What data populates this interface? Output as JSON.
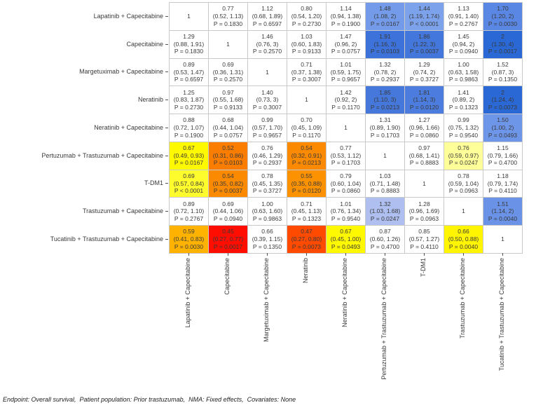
{
  "chart_data": {
    "type": "heatmap",
    "title": "",
    "description": "Network meta-analysis league table of hazard ratios: value, 95% CI, P-value per cell; diagonal = 1",
    "row_labels": [
      "Lapatinib + Capecitabine",
      "Capecitabine",
      "Margetuximab + Capecitabine",
      "Neratinib",
      "Neratinib + Capecitabine",
      "Pertuzumab + Trastuzumab + Capecitabine",
      "T-DM1",
      "Trastuzumab + Capecitabine",
      "Tucatinib + Trastuzumab + Capecitabine"
    ],
    "col_labels": [
      "Lapatinib + Capecitabine",
      "Capecitabine",
      "Margetuximab + Capecitabine",
      "Neratinib",
      "Neratinib + Capecitabine",
      "Pertuzumab + Trastuzumab + Capecitabine",
      "T-DM1",
      "Trastuzumab + Capecitabine",
      "Tucatinib + Trastuzumab + Capecitabine"
    ],
    "cells": [
      [
        {
          "v": "1",
          "bg": "#FFFFFF"
        },
        {
          "v": "0.77",
          "ci": "(0.52, 1.13)",
          "p": "P = 0.1830",
          "bg": "#FFFFFF"
        },
        {
          "v": "1.12",
          "ci": "(0.68, 1.89)",
          "p": "P = 0.6597",
          "bg": "#FFFFFF"
        },
        {
          "v": "0.80",
          "ci": "(0.54, 1.20)",
          "p": "P = 0.2730",
          "bg": "#FFFFFF"
        },
        {
          "v": "1.14",
          "ci": "(0.94, 1.38)",
          "p": "P = 0.1900",
          "bg": "#FFFFFF"
        },
        {
          "v": "1.48",
          "ci": "(1.08, 2)",
          "p": "P = 0.0167",
          "bg": "#739BE9"
        },
        {
          "v": "1.44",
          "ci": "(1.19, 1.74)",
          "p": "P < 0.0001",
          "bg": "#7CA2EC"
        },
        {
          "v": "1.13",
          "ci": "(0.91, 1.40)",
          "p": "P = 0.2767",
          "bg": "#FFFFFF"
        },
        {
          "v": "1.70",
          "ci": "(1.20, 2)",
          "p": "P = 0.0030",
          "bg": "#5987E3"
        }
      ],
      [
        {
          "v": "1.29",
          "ci": "(0.88, 1.91)",
          "p": "P = 0.1830",
          "bg": "#FFFFFF"
        },
        {
          "v": "1",
          "bg": "#FFFFFF"
        },
        {
          "v": "1.46",
          "ci": "(0.76, 3)",
          "p": "P = 0.2570",
          "bg": "#FFFFFF"
        },
        {
          "v": "1.03",
          "ci": "(0.60, 1.83)",
          "p": "P = 0.9133",
          "bg": "#FFFFFF"
        },
        {
          "v": "1.47",
          "ci": "(0.96, 2)",
          "p": "P = 0.0757",
          "bg": "#FFFFFF"
        },
        {
          "v": "1.91",
          "ci": "(1.16, 3)",
          "p": "P = 0.0103",
          "bg": "#3C72D9"
        },
        {
          "v": "1.86",
          "ci": "(1.22, 3)",
          "p": "P = 0.0037",
          "bg": "#4477DB"
        },
        {
          "v": "1.45",
          "ci": "(0.94, 2)",
          "p": "P = 0.0940",
          "bg": "#FFFFFF"
        },
        {
          "v": "2",
          "ci": "(1.30, 4)",
          "p": "P = 0.0017",
          "bg": "#2A68D5"
        }
      ],
      [
        {
          "v": "0.89",
          "ci": "(0.53, 1.47)",
          "p": "P = 0.6597",
          "bg": "#FFFFFF"
        },
        {
          "v": "0.69",
          "ci": "(0.36, 1.31)",
          "p": "P = 0.2570",
          "bg": "#FFFFFF"
        },
        {
          "v": "1",
          "bg": "#FFFFFF"
        },
        {
          "v": "0.71",
          "ci": "(0.37, 1.38)",
          "p": "P = 0.3007",
          "bg": "#FFFFFF"
        },
        {
          "v": "1.01",
          "ci": "(0.59, 1.75)",
          "p": "P = 0.9657",
          "bg": "#FFFFFF"
        },
        {
          "v": "1.32",
          "ci": "(0.78, 2)",
          "p": "P = 0.2937",
          "bg": "#FFFFFF"
        },
        {
          "v": "1.29",
          "ci": "(0.74, 2)",
          "p": "P = 0.3727",
          "bg": "#FFFFFF"
        },
        {
          "v": "1.00",
          "ci": "(0.63, 1.58)",
          "p": "P = 0.9863",
          "bg": "#FFFFFF"
        },
        {
          "v": "1.52",
          "ci": "(0.87, 3)",
          "p": "P = 0.1350",
          "bg": "#FFFFFF"
        }
      ],
      [
        {
          "v": "1.25",
          "ci": "(0.83, 1.87)",
          "p": "P = 0.2730",
          "bg": "#FFFFFF"
        },
        {
          "v": "0.97",
          "ci": "(0.55, 1.68)",
          "p": "P = 0.9133",
          "bg": "#FFFFFF"
        },
        {
          "v": "1.40",
          "ci": "(0.73, 3)",
          "p": "P = 0.3007",
          "bg": "#FFFFFF"
        },
        {
          "v": "1",
          "bg": "#FFFFFF"
        },
        {
          "v": "1.42",
          "ci": "(0.92, 2)",
          "p": "P = 0.1170",
          "bg": "#FFFFFF"
        },
        {
          "v": "1.85",
          "ci": "(1.10, 3)",
          "p": "P = 0.0213",
          "bg": "#4678DC"
        },
        {
          "v": "1.81",
          "ci": "(1.14, 3)",
          "p": "P = 0.0120",
          "bg": "#4B7CDE"
        },
        {
          "v": "1.41",
          "ci": "(0.89, 2)",
          "p": "P = 0.1323",
          "bg": "#FFFFFF"
        },
        {
          "v": "2",
          "ci": "(1.24, 4)",
          "p": "P = 0.0073",
          "bg": "#2A68D5"
        }
      ],
      [
        {
          "v": "0.88",
          "ci": "(0.72, 1.07)",
          "p": "P = 0.1900",
          "bg": "#FFFFFF"
        },
        {
          "v": "0.68",
          "ci": "(0.44, 1.04)",
          "p": "P = 0.0757",
          "bg": "#FFFFFF"
        },
        {
          "v": "0.99",
          "ci": "(0.57, 1.70)",
          "p": "P = 0.9657",
          "bg": "#FFFFFF"
        },
        {
          "v": "0.70",
          "ci": "(0.45, 1.09)",
          "p": "P = 0.1170",
          "bg": "#FFFFFF"
        },
        {
          "v": "1",
          "bg": "#FFFFFF"
        },
        {
          "v": "1.31",
          "ci": "(0.89, 1.90)",
          "p": "P = 0.1703",
          "bg": "#FFFFFF"
        },
        {
          "v": "1.27",
          "ci": "(0.96, 1.66)",
          "p": "P = 0.0860",
          "bg": "#FFFFFF"
        },
        {
          "v": "0.99",
          "ci": "(0.75, 1.32)",
          "p": "P = 0.9540",
          "bg": "#FFFFFF"
        },
        {
          "v": "1.50",
          "ci": "(1.00, 2)",
          "p": "P = 0.0493",
          "bg": "#6E96E8"
        }
      ],
      [
        {
          "v": "0.67",
          "ci": "(0.49, 0.93)",
          "p": "P = 0.0167",
          "bg": "#FFF900"
        },
        {
          "v": "0.52",
          "ci": "(0.31, 0.86)",
          "p": "P = 0.0103",
          "bg": "#FA7D00"
        },
        {
          "v": "0.76",
          "ci": "(0.46, 1.29)",
          "p": "P = 0.2937",
          "bg": "#FFFFFF"
        },
        {
          "v": "0.54",
          "ci": "(0.32, 0.91)",
          "p": "P = 0.0213",
          "bg": "#FB8A00"
        },
        {
          "v": "0.77",
          "ci": "(0.53, 1.12)",
          "p": "P = 0.1703",
          "bg": "#FFFFFF"
        },
        {
          "v": "1",
          "bg": "#FFFFFF"
        },
        {
          "v": "0.97",
          "ci": "(0.68, 1.41)",
          "p": "P = 0.8883",
          "bg": "#FFFFFF"
        },
        {
          "v": "0.76",
          "ci": "(0.59, 0.97)",
          "p": "P = 0.0247",
          "bg": "#FFFF99"
        },
        {
          "v": "1.15",
          "ci": "(0.79, 1.66)",
          "p": "P = 0.4700",
          "bg": "#FFFFFF"
        }
      ],
      [
        {
          "v": "0.69",
          "ci": "(0.57, 0.84)",
          "p": "P < 0.0001",
          "bg": "#FFFC2E"
        },
        {
          "v": "0.54",
          "ci": "(0.35, 0.82)",
          "p": "P = 0.0037",
          "bg": "#FB8A00"
        },
        {
          "v": "0.78",
          "ci": "(0.45, 1.35)",
          "p": "P = 0.3727",
          "bg": "#FFFFFF"
        },
        {
          "v": "0.55",
          "ci": "(0.35, 0.88)",
          "p": "P = 0.0120",
          "bg": "#FC9200"
        },
        {
          "v": "0.79",
          "ci": "(0.60, 1.04)",
          "p": "P = 0.0860",
          "bg": "#FFFFFF"
        },
        {
          "v": "1.03",
          "ci": "(0.71, 1.48)",
          "p": "P = 0.8883",
          "bg": "#FFFFFF"
        },
        {
          "v": "1",
          "bg": "#FFFFFF"
        },
        {
          "v": "0.78",
          "ci": "(0.59, 1.04)",
          "p": "P = 0.0963",
          "bg": "#FFFFFF"
        },
        {
          "v": "1.18",
          "ci": "(0.79, 1.74)",
          "p": "P = 0.4110",
          "bg": "#FFFFFF"
        }
      ],
      [
        {
          "v": "0.89",
          "ci": "(0.72, 1.10)",
          "p": "P = 0.2767",
          "bg": "#FFFFFF"
        },
        {
          "v": "0.69",
          "ci": "(0.44, 1.06)",
          "p": "P = 0.0940",
          "bg": "#FFFFFF"
        },
        {
          "v": "1.00",
          "ci": "(0.63, 1.60)",
          "p": "P = 0.9863",
          "bg": "#FFFFFF"
        },
        {
          "v": "0.71",
          "ci": "(0.45, 1.13)",
          "p": "P = 0.1323",
          "bg": "#FFFFFF"
        },
        {
          "v": "1.01",
          "ci": "(0.76, 1.34)",
          "p": "P = 0.9540",
          "bg": "#FFFFFF"
        },
        {
          "v": "1.32",
          "ci": "(1.03, 1.68)",
          "p": "P = 0.0247",
          "bg": "#AFC0F0"
        },
        {
          "v": "1.28",
          "ci": "(0.96, 1.69)",
          "p": "P = 0.0963",
          "bg": "#FFFFFF"
        },
        {
          "v": "1",
          "bg": "#FFFFFF"
        },
        {
          "v": "1.51",
          "ci": "(1.14, 2)",
          "p": "P = 0.0040",
          "bg": "#6A93E7"
        }
      ],
      [
        {
          "v": "0.59",
          "ci": "(0.41, 0.83)",
          "p": "P = 0.0030",
          "bg": "#FFB300"
        },
        {
          "v": "0.45",
          "ci": "(0.27, 0.77)",
          "p": "P = 0.0017",
          "bg": "#FE0D00"
        },
        {
          "v": "0.66",
          "ci": "(0.39, 1.15)",
          "p": "P = 0.1350",
          "bg": "#FFFFFF"
        },
        {
          "v": "0.47",
          "ci": "(0.27, 0.80)",
          "p": "P = 0.0073",
          "bg": "#FF4A00"
        },
        {
          "v": "0.67",
          "ci": "(0.45, 1.00)",
          "p": "P = 0.0493",
          "bg": "#FFF900"
        },
        {
          "v": "0.87",
          "ci": "(0.60, 1.26)",
          "p": "P = 0.4700",
          "bg": "#FFFFFF"
        },
        {
          "v": "0.85",
          "ci": "(0.57, 1.27)",
          "p": "P = 0.4110",
          "bg": "#FFFFFF"
        },
        {
          "v": "0.66",
          "ci": "(0.50, 0.88)",
          "p": "P = 0.0040",
          "bg": "#FFF500"
        },
        {
          "v": "1",
          "bg": "#FFFFFF"
        }
      ]
    ],
    "footnote": "Endpoint: Overall survival,  Patient population: Prior trastuzumab,  NMA: Fixed effects,  Covariates: None",
    "layout_hints": {
      "grid": true,
      "grid_line_color": "#C9C9C9",
      "nonsignificant_color": "#FFFFFF",
      "hr_above_1_palette": "light-to-dark blue",
      "hr_below_1_palette": "yellow-orange-red"
    }
  }
}
